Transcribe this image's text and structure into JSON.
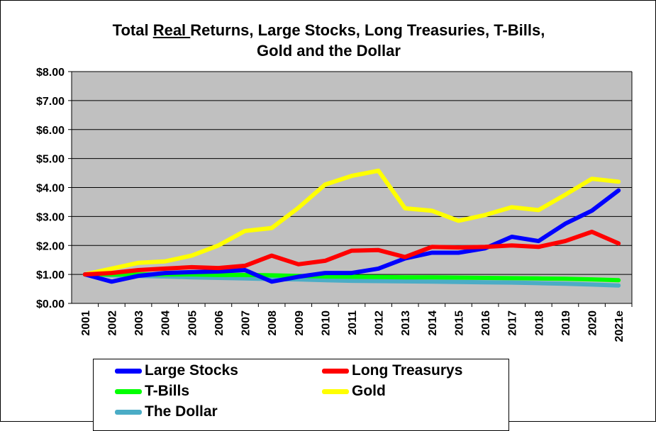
{
  "title": {
    "prefix": "Total ",
    "emphasis": "Real ",
    "suffix": "Returns, Large Stocks, Long Treasuries, T-Bills,",
    "line2": "Gold and the Dollar"
  },
  "chart_data": {
    "type": "line",
    "title": "Total Real Returns, Large Stocks, Long Treasuries, T-Bills, Gold and the Dollar",
    "xlabel": "",
    "ylabel": "",
    "categories": [
      "2001",
      "2002",
      "2003",
      "2004",
      "2005",
      "2006",
      "2007",
      "2008",
      "2009",
      "2010",
      "2011",
      "2012",
      "2013",
      "2014",
      "2015",
      "2016",
      "2017",
      "2018",
      "2019",
      "2020",
      "2021e"
    ],
    "ylim": [
      0,
      8
    ],
    "yticks": [
      "$0.00",
      "$1.00",
      "$2.00",
      "$3.00",
      "$4.00",
      "$5.00",
      "$6.00",
      "$7.00",
      "$8.00"
    ],
    "grid": true,
    "plot_background": "#c0c0c0",
    "legend_position": "bottom",
    "series": [
      {
        "name": "Large Stocks",
        "color": "#0000ff",
        "values": [
          1.0,
          0.75,
          0.95,
          1.05,
          1.08,
          1.1,
          1.15,
          0.75,
          0.92,
          1.05,
          1.05,
          1.2,
          1.55,
          1.75,
          1.75,
          1.9,
          2.3,
          2.15,
          2.75,
          3.2,
          3.9
        ]
      },
      {
        "name": "Long Treasurys",
        "color": "#ff0000",
        "values": [
          1.0,
          1.05,
          1.15,
          1.2,
          1.25,
          1.22,
          1.3,
          1.65,
          1.35,
          1.47,
          1.82,
          1.84,
          1.6,
          1.95,
          1.93,
          1.95,
          2.0,
          1.95,
          2.15,
          2.47,
          2.07
        ]
      },
      {
        "name": "T-Bills",
        "color": "#00ff00",
        "values": [
          1.0,
          1.0,
          1.0,
          1.0,
          1.0,
          0.98,
          0.98,
          0.97,
          0.95,
          0.93,
          0.92,
          0.91,
          0.9,
          0.9,
          0.89,
          0.88,
          0.87,
          0.86,
          0.85,
          0.83,
          0.8
        ]
      },
      {
        "name": "Gold",
        "color": "#ffff00",
        "values": [
          1.0,
          1.2,
          1.4,
          1.45,
          1.65,
          2.0,
          2.5,
          2.6,
          3.3,
          4.1,
          4.4,
          4.58,
          3.28,
          3.2,
          2.85,
          3.05,
          3.32,
          3.22,
          3.75,
          4.3,
          4.2
        ]
      },
      {
        "name": "The Dollar",
        "color": "#4bacc6",
        "values": [
          1.0,
          0.97,
          0.95,
          0.93,
          0.9,
          0.88,
          0.86,
          0.84,
          0.83,
          0.8,
          0.78,
          0.77,
          0.76,
          0.75,
          0.74,
          0.73,
          0.72,
          0.7,
          0.68,
          0.65,
          0.62
        ]
      }
    ]
  },
  "legend": {
    "items": [
      {
        "label": "Large Stocks",
        "color": "#0000ff"
      },
      {
        "label": "Long Treasurys",
        "color": "#ff0000"
      },
      {
        "label": "T-Bills",
        "color": "#00ff00"
      },
      {
        "label": "Gold",
        "color": "#ffff00"
      },
      {
        "label": "The Dollar",
        "color": "#4bacc6"
      }
    ]
  }
}
